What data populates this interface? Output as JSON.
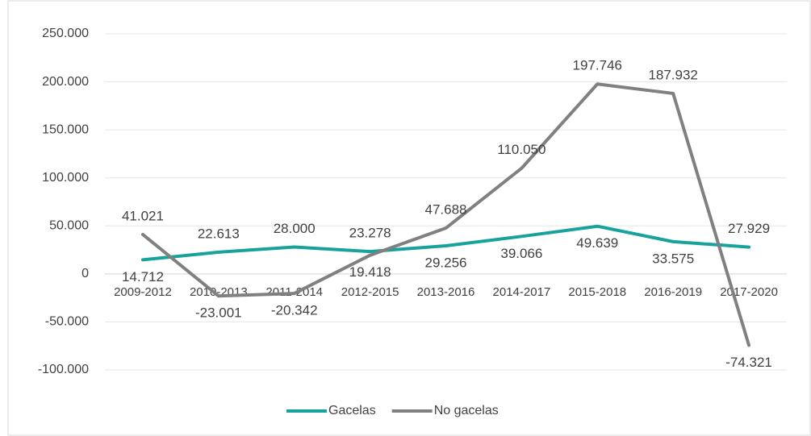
{
  "chart_data": {
    "type": "line",
    "categories": [
      "2009-2012",
      "2010-2013",
      "2011-2014",
      "2012-2015",
      "2013-2016",
      "2014-2017",
      "2015-2018",
      "2016-2019",
      "2017-2020"
    ],
    "series": [
      {
        "name": "Gacelas",
        "color": "#17a39b",
        "values": [
          14712,
          22613,
          28000,
          23278,
          29256,
          39066,
          49639,
          33575,
          27929
        ],
        "value_labels": [
          "14.712",
          "22.613",
          "28.000",
          "23.278",
          "29.256",
          "39.066",
          "49.639",
          "33.575",
          "27.929"
        ]
      },
      {
        "name": "No gacelas",
        "color": "#808080",
        "values": [
          41021,
          -23001,
          -20342,
          19418,
          47688,
          110050,
          197746,
          187932,
          -74321
        ],
        "value_labels": [
          "41.021",
          "-23.001",
          "-20.342",
          "19.418",
          "47.688",
          "110.050",
          "197.746",
          "187.932",
          "-74.321"
        ]
      }
    ],
    "ylim": [
      -100000,
      250000
    ],
    "yticks": [
      {
        "value": -100000,
        "label": "-100.000"
      },
      {
        "value": -50000,
        "label": "-50.000"
      },
      0,
      {
        "value": 50000,
        "label": "50.000"
      },
      {
        "value": 100000,
        "label": "100.000"
      },
      {
        "value": 150000,
        "label": "150.000"
      },
      {
        "value": 200000,
        "label": "200.000"
      },
      {
        "value": 250000,
        "label": "250.000"
      }
    ],
    "grid": true,
    "legend": "bottom"
  }
}
